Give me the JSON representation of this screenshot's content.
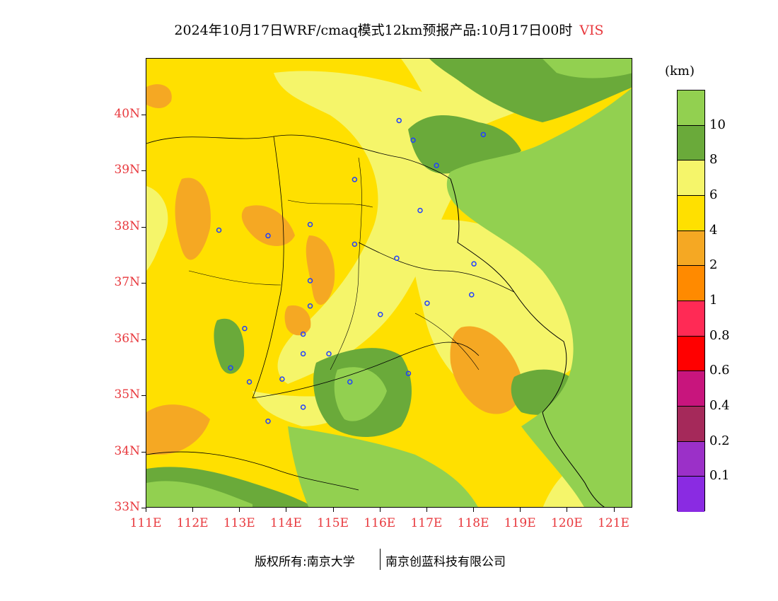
{
  "title": {
    "main": "2024年10月17日WRF/cmaq模式12km预报产品:10月17日00时",
    "variable": "VIS"
  },
  "map": {
    "lat_labels": [
      "40N",
      "39N",
      "38N",
      "37N",
      "36N",
      "35N",
      "34N",
      "33N"
    ],
    "lon_labels": [
      "111E",
      "112E",
      "113E",
      "114E",
      "115E",
      "116E",
      "117E",
      "118E",
      "119E",
      "120E",
      "121E"
    ],
    "extent": {
      "lon_min": 111,
      "lon_max": 121.4,
      "lat_min": 33,
      "lat_max": 41
    }
  },
  "legend": {
    "unit": "(km)",
    "labels": [
      "10",
      "8",
      "6",
      "4",
      "2",
      "1",
      "0.8",
      "0.6",
      "0.4",
      "0.2",
      "0.1"
    ],
    "colors": [
      "#92d050",
      "#6aaa3a",
      "#f5f56a",
      "#ffe000",
      "#f5a823",
      "#ff8a00",
      "#ff2a55",
      "#ff0000",
      "#c8157d",
      "#a5295a",
      "#9b30c8",
      "#8a2be2"
    ]
  },
  "stations_lonlat": [
    [
      116.4,
      39.9
    ],
    [
      116.7,
      39.55
    ],
    [
      118.2,
      39.65
    ],
    [
      117.2,
      39.1
    ],
    [
      115.45,
      38.85
    ],
    [
      116.85,
      38.3
    ],
    [
      112.55,
      37.95
    ],
    [
      113.6,
      37.85
    ],
    [
      114.5,
      38.05
    ],
    [
      115.45,
      37.7
    ],
    [
      116.35,
      37.45
    ],
    [
      118.0,
      37.35
    ],
    [
      117.95,
      36.8
    ],
    [
      114.5,
      37.05
    ],
    [
      114.5,
      36.6
    ],
    [
      116.0,
      36.45
    ],
    [
      117.0,
      36.65
    ],
    [
      113.1,
      36.2
    ],
    [
      114.35,
      36.1
    ],
    [
      112.8,
      35.5
    ],
    [
      113.2,
      35.25
    ],
    [
      113.9,
      35.3
    ],
    [
      114.35,
      35.75
    ],
    [
      114.9,
      35.75
    ],
    [
      115.35,
      35.25
    ],
    [
      116.6,
      35.4
    ],
    [
      114.35,
      34.8
    ],
    [
      113.6,
      34.55
    ]
  ],
  "credit": {
    "left": "版权所有:南京大学",
    "right": "南京创蓝科技有限公司"
  }
}
